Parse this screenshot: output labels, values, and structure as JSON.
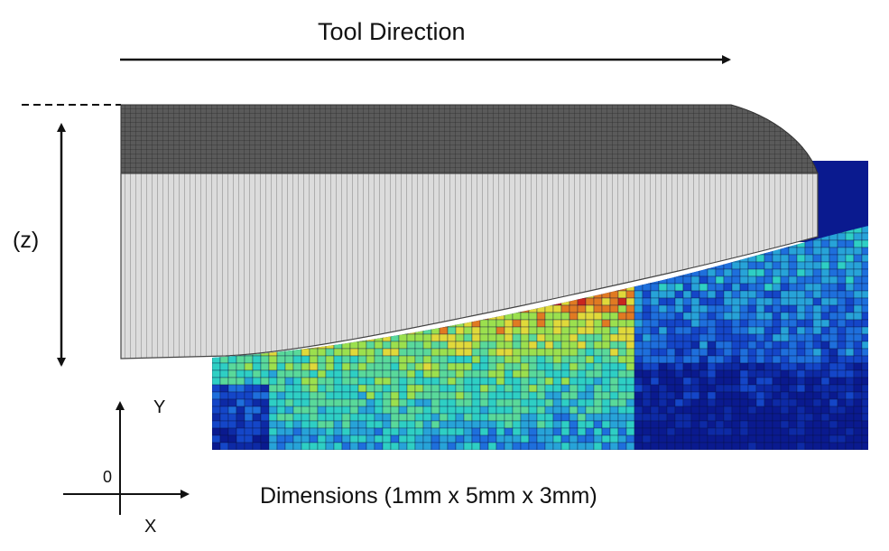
{
  "title": "Tool Direction",
  "z_label": "(z)",
  "axes": {
    "y": "Y",
    "origin": "0",
    "x": "X"
  },
  "dimensions_label": "Dimensions (1mm x 5mm x 3mm)",
  "colors": {
    "tool_top": "#4a4a4a",
    "tool_side": "#d9d9d9",
    "workpiece_base": "#0b1f99",
    "contour": [
      "#0a1a8f",
      "#0d2aa6",
      "#1446c8",
      "#1e6fdc",
      "#27a3d8",
      "#2ecfc4",
      "#59d99a",
      "#9be04e",
      "#e0d93a",
      "#e07a22",
      "#c8261f"
    ]
  }
}
